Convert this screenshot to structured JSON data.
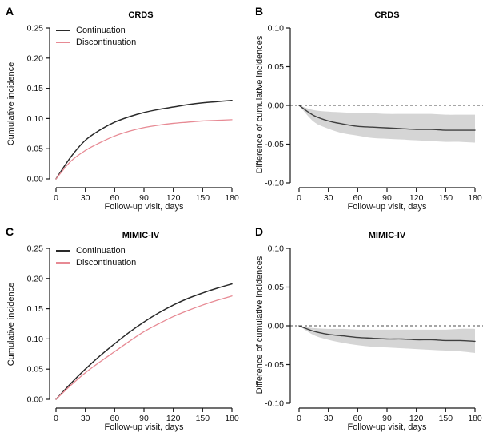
{
  "colors": {
    "continuation": "#2a2a2a",
    "discontinuation": "#e78a94",
    "diff_line": "#404040",
    "band": "#d5d5d5",
    "axis": "#1a1a1a",
    "zero_dash": "#4d4d4d",
    "background": "#ffffff"
  },
  "chart_data": [
    {
      "panel_label": "A",
      "type": "line",
      "title": "CRDS",
      "xlabel": "Follow-up visit, days",
      "ylabel": "Cumulative incidence",
      "xlim": [
        0,
        180
      ],
      "ylim": [
        0,
        0.25
      ],
      "xticks": [
        0,
        30,
        60,
        90,
        120,
        150,
        180
      ],
      "yticks": [
        {
          "v": 0.0,
          "label": "0.00"
        },
        {
          "v": 0.05,
          "label": "0.05"
        },
        {
          "v": 0.1,
          "label": "0.10"
        },
        {
          "v": 0.15,
          "label": "0.15"
        },
        {
          "v": 0.2,
          "label": "0.20"
        },
        {
          "v": 0.25,
          "label": "0.25"
        }
      ],
      "legend_position": "top-left",
      "legend": [
        {
          "label": "Continuation",
          "color": "continuation"
        },
        {
          "label": "Discontinuation",
          "color": "discontinuation"
        }
      ],
      "x": [
        0,
        15,
        30,
        45,
        60,
        75,
        90,
        105,
        120,
        135,
        150,
        165,
        180
      ],
      "series": [
        {
          "name": "Continuation",
          "color": "continuation",
          "values": [
            0,
            0.036,
            0.064,
            0.081,
            0.094,
            0.103,
            0.11,
            0.115,
            0.119,
            0.123,
            0.126,
            0.128,
            0.13
          ]
        },
        {
          "name": "Discontinuation",
          "color": "discontinuation",
          "values": [
            0,
            0.029,
            0.047,
            0.06,
            0.071,
            0.079,
            0.085,
            0.089,
            0.092,
            0.094,
            0.096,
            0.097,
            0.098
          ]
        }
      ]
    },
    {
      "panel_label": "B",
      "type": "line",
      "title": "CRDS",
      "xlabel": "Follow-up visit, days",
      "ylabel": "Difference of cumulative incidences",
      "xlim": [
        0,
        180
      ],
      "ylim": [
        -0.1,
        0.1
      ],
      "xticks": [
        0,
        30,
        60,
        90,
        120,
        150,
        180
      ],
      "yticks": [
        {
          "v": -0.1,
          "label": "-0.10"
        },
        {
          "v": -0.05,
          "label": "-0.05"
        },
        {
          "v": 0.0,
          "label": "0.00"
        },
        {
          "v": 0.05,
          "label": "0.05"
        },
        {
          "v": 0.1,
          "label": "0.10"
        }
      ],
      "zero_line": true,
      "x": [
        0,
        15,
        30,
        45,
        60,
        75,
        90,
        105,
        120,
        135,
        150,
        165,
        180
      ],
      "series": [
        {
          "name": "difference",
          "color": "diff_line",
          "values": [
            0,
            -0.013,
            -0.02,
            -0.024,
            -0.027,
            -0.028,
            -0.029,
            -0.03,
            -0.031,
            -0.031,
            -0.032,
            -0.032,
            -0.032
          ]
        }
      ],
      "band": {
        "upper": [
          0,
          -0.006,
          -0.008,
          -0.009,
          -0.01,
          -0.01,
          -0.011,
          -0.011,
          -0.011,
          -0.011,
          -0.012,
          -0.012,
          -0.012
        ],
        "lower": [
          0,
          -0.021,
          -0.03,
          -0.036,
          -0.039,
          -0.042,
          -0.043,
          -0.044,
          -0.045,
          -0.046,
          -0.047,
          -0.047,
          -0.048
        ]
      }
    },
    {
      "panel_label": "C",
      "type": "line",
      "title": "MIMIC-IV",
      "xlabel": "Follow-up visit, days",
      "ylabel": "Cumulative incidence",
      "xlim": [
        0,
        180
      ],
      "ylim": [
        0,
        0.25
      ],
      "xticks": [
        0,
        30,
        60,
        90,
        120,
        150,
        180
      ],
      "yticks": [
        {
          "v": 0.0,
          "label": "0.00"
        },
        {
          "v": 0.05,
          "label": "0.05"
        },
        {
          "v": 0.1,
          "label": "0.10"
        },
        {
          "v": 0.15,
          "label": "0.15"
        },
        {
          "v": 0.2,
          "label": "0.20"
        },
        {
          "v": 0.25,
          "label": "0.25"
        }
      ],
      "legend_position": "top-left",
      "legend": [
        {
          "label": "Continuation",
          "color": "continuation"
        },
        {
          "label": "Discontinuation",
          "color": "discontinuation"
        }
      ],
      "x": [
        0,
        15,
        30,
        45,
        60,
        75,
        90,
        105,
        120,
        135,
        150,
        165,
        180
      ],
      "series": [
        {
          "name": "Continuation",
          "color": "continuation",
          "values": [
            0,
            0.026,
            0.05,
            0.072,
            0.092,
            0.111,
            0.128,
            0.143,
            0.156,
            0.167,
            0.176,
            0.184,
            0.191
          ]
        },
        {
          "name": "Discontinuation",
          "color": "discontinuation",
          "values": [
            0,
            0.023,
            0.044,
            0.062,
            0.079,
            0.096,
            0.112,
            0.125,
            0.137,
            0.147,
            0.156,
            0.164,
            0.171
          ]
        }
      ]
    },
    {
      "panel_label": "D",
      "type": "line",
      "title": "MIMIC-IV",
      "xlabel": "Follow-up visit, days",
      "ylabel": "Difference of cumulative incidences",
      "xlim": [
        0,
        180
      ],
      "ylim": [
        -0.1,
        0.1
      ],
      "xticks": [
        0,
        30,
        60,
        90,
        120,
        150,
        180
      ],
      "yticks": [
        {
          "v": -0.1,
          "label": "-0.10"
        },
        {
          "v": -0.05,
          "label": "-0.05"
        },
        {
          "v": 0.0,
          "label": "0.00"
        },
        {
          "v": 0.05,
          "label": "0.05"
        },
        {
          "v": 0.1,
          "label": "0.10"
        }
      ],
      "zero_line": true,
      "x": [
        0,
        15,
        30,
        45,
        60,
        75,
        90,
        105,
        120,
        135,
        150,
        165,
        180
      ],
      "series": [
        {
          "name": "difference",
          "color": "diff_line",
          "values": [
            0,
            -0.007,
            -0.011,
            -0.013,
            -0.015,
            -0.016,
            -0.017,
            -0.017,
            -0.018,
            -0.018,
            -0.019,
            -0.019,
            -0.02
          ]
        }
      ],
      "band": {
        "upper": [
          0,
          -0.003,
          -0.004,
          -0.004,
          -0.005,
          -0.005,
          -0.005,
          -0.005,
          -0.005,
          -0.005,
          -0.005,
          -0.004,
          -0.004
        ],
        "lower": [
          0,
          -0.012,
          -0.018,
          -0.022,
          -0.025,
          -0.027,
          -0.028,
          -0.029,
          -0.03,
          -0.031,
          -0.032,
          -0.033,
          -0.035
        ]
      }
    }
  ]
}
